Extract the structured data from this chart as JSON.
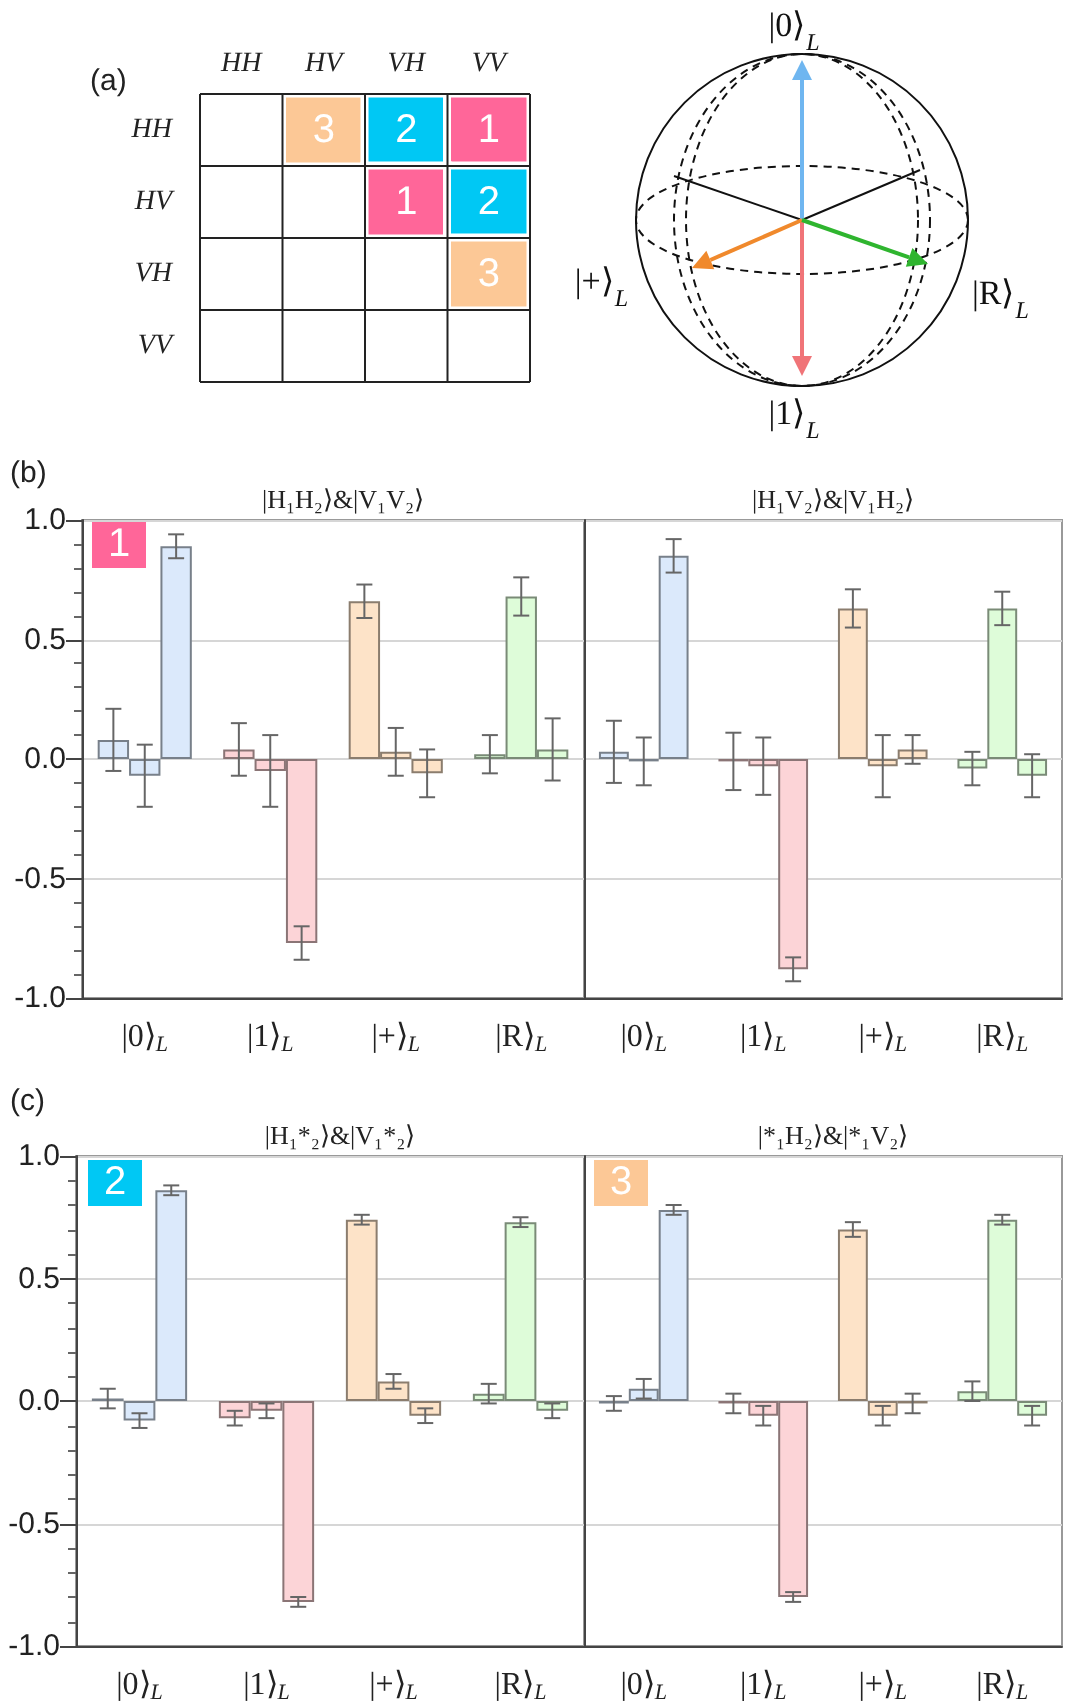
{
  "chart_data": [
    {
      "type": "heatmap",
      "title": "(a)",
      "categories": [
        "HH",
        "HV",
        "VH",
        "VV"
      ],
      "y_categories": [
        "HH",
        "HV",
        "VH",
        "VV"
      ],
      "cells": [
        [
          null,
          3,
          2,
          1
        ],
        [
          null,
          null,
          1,
          2
        ],
        [
          null,
          null,
          null,
          3
        ],
        [
          null,
          null,
          null,
          null
        ]
      ],
      "colors": [
        "#ff6699",
        "#00c8f4",
        "#fcc896"
      ],
      "data_labels": true
    },
    {
      "type": "other",
      "annotations": [
        "|0⟩$_{L}$",
        "|1⟩$_{L}$",
        "|+⟩$_{L}$",
        "|R⟩$_{L}$"
      ]
    },
    {
      "type": "bar",
      "title": "|H₁H₂⟩&|V₁V₂⟩",
      "annotations": [
        "(b)",
        "1"
      ],
      "categories": [
        "|0⟩$_{L}$",
        "|1⟩$_{L}$",
        "|+⟩$_{L}$",
        "|R⟩$_{L}$"
      ],
      "series": [
        {
          "colors": [
            "#dbe9fb",
            "#fcd4d7",
            "#fde3c8",
            "#defcd9"
          ],
          "values": [
            0.08,
            0.04,
            0.66,
            0.02
          ],
          "errors": [
            0.13,
            0.11,
            0.07,
            0.08
          ]
        },
        {
          "colors": [
            "#dbe9fb",
            "#fcd4d7",
            "#fde3c8",
            "#defcd9"
          ],
          "values": [
            -0.07,
            -0.05,
            0.03,
            0.68
          ],
          "errors": [
            0.13,
            0.15,
            0.1,
            0.08
          ]
        },
        {
          "colors": [
            "#dbe9fb",
            "#fcd4d7",
            "#fde3c8",
            "#defcd9"
          ],
          "values": [
            0.89,
            -0.77,
            -0.06,
            0.04
          ],
          "errors": [
            0.05,
            0.07,
            0.1,
            0.13
          ]
        }
      ],
      "ylim": [
        -1,
        1
      ],
      "yticks": [
        {
          "value": -1,
          "label": "-1.0"
        },
        {
          "value": -0.5,
          "label": "-0.5"
        },
        {
          "value": 0,
          "label": "0.0"
        },
        {
          "value": 0.5,
          "label": "0.5"
        },
        {
          "value": 1,
          "label": "1.0"
        }
      ],
      "grid": "y"
    },
    {
      "type": "bar",
      "title": "|H₁V₂⟩&|V₁H₂⟩",
      "categories": [
        "|0⟩$_{L}$",
        "|1⟩$_{L}$",
        "|+⟩$_{L}$",
        "|R⟩$_{L}$"
      ],
      "series": [
        {
          "colors": [
            "#dbe9fb",
            "#fcd4d7",
            "#fde3c8",
            "#defcd9"
          ],
          "values": [
            0.03,
            -0.01,
            0.63,
            -0.04
          ],
          "errors": [
            0.13,
            0.12,
            0.08,
            0.07
          ]
        },
        {
          "colors": [
            "#dbe9fb",
            "#fcd4d7",
            "#fde3c8",
            "#defcd9"
          ],
          "values": [
            -0.01,
            -0.03,
            -0.03,
            0.63
          ],
          "errors": [
            0.1,
            0.12,
            0.13,
            0.07
          ]
        },
        {
          "colors": [
            "#dbe9fb",
            "#fcd4d7",
            "#fde3c8",
            "#defcd9"
          ],
          "values": [
            0.85,
            -0.88,
            0.04,
            -0.07
          ],
          "errors": [
            0.07,
            0.05,
            0.06,
            0.09
          ]
        }
      ],
      "ylim": [
        -1,
        1
      ],
      "yticks": [
        {
          "value": -1,
          "label": null
        },
        {
          "value": -0.5,
          "label": null
        },
        {
          "value": 0,
          "label": null
        },
        {
          "value": 0.5,
          "label": null
        },
        {
          "value": 1,
          "label": null
        }
      ],
      "grid": "y",
      "tick_labels": "x"
    },
    {
      "type": "bar",
      "title": "|H₁*₂⟩&|V₁*₂⟩",
      "annotations": [
        "(c)",
        "2"
      ],
      "categories": [
        "|0⟩$_{L}$",
        "|1⟩$_{L}$",
        "|+⟩$_{L}$",
        "|R⟩$_{L}$"
      ],
      "series": [
        {
          "colors": [
            "#dbe9fb",
            "#fcd4d7",
            "#fde3c8",
            "#defcd9"
          ],
          "values": [
            0.01,
            -0.07,
            0.74,
            0.03
          ],
          "errors": [
            0.04,
            0.03,
            0.02,
            0.04
          ]
        },
        {
          "colors": [
            "#dbe9fb",
            "#fcd4d7",
            "#fde3c8",
            "#defcd9"
          ],
          "values": [
            -0.08,
            -0.04,
            0.08,
            0.73
          ],
          "errors": [
            0.03,
            0.03,
            0.03,
            0.02
          ]
        },
        {
          "colors": [
            "#dbe9fb",
            "#fcd4d7",
            "#fde3c8",
            "#defcd9"
          ],
          "values": [
            0.86,
            -0.82,
            -0.06,
            -0.04
          ],
          "errors": [
            0.02,
            0.02,
            0.03,
            0.03
          ]
        }
      ],
      "ylim": [
        -1,
        1
      ],
      "yticks": [
        {
          "value": -1,
          "label": "-1.0"
        },
        {
          "value": -0.5,
          "label": "-0.5"
        },
        {
          "value": 0,
          "label": "0.0"
        },
        {
          "value": 0.5,
          "label": "0.5"
        },
        {
          "value": 1,
          "label": "1.0"
        }
      ],
      "grid": "y"
    },
    {
      "type": "bar",
      "title": "|*₁H₂⟩&|*₁V₂⟩",
      "annotations": [
        "3"
      ],
      "categories": [
        "|0⟩$_{L}$",
        "|1⟩$_{L}$",
        "|+⟩$_{L}$",
        "|R⟩$_{L}$"
      ],
      "series": [
        {
          "colors": [
            "#dbe9fb",
            "#fcd4d7",
            "#fde3c8",
            "#defcd9"
          ],
          "values": [
            -0.01,
            -0.01,
            0.7,
            0.04
          ],
          "errors": [
            0.03,
            0.04,
            0.03,
            0.04
          ]
        },
        {
          "colors": [
            "#dbe9fb",
            "#fcd4d7",
            "#fde3c8",
            "#defcd9"
          ],
          "values": [
            0.05,
            -0.06,
            -0.06,
            0.74
          ],
          "errors": [
            0.04,
            0.04,
            0.04,
            0.02
          ]
        },
        {
          "colors": [
            "#dbe9fb",
            "#fcd4d7",
            "#fde3c8",
            "#defcd9"
          ],
          "values": [
            0.78,
            -0.8,
            -0.01,
            -0.06
          ],
          "errors": [
            0.02,
            0.02,
            0.04,
            0.04
          ]
        }
      ],
      "ylim": [
        -1,
        1
      ],
      "yticks": [
        {
          "value": -1,
          "label": null
        },
        {
          "value": -0.5,
          "label": null
        },
        {
          "value": 0,
          "label": null
        },
        {
          "value": 0.5,
          "label": null
        },
        {
          "value": 1,
          "label": null
        }
      ],
      "grid": "y",
      "tick_labels": "x"
    }
  ]
}
